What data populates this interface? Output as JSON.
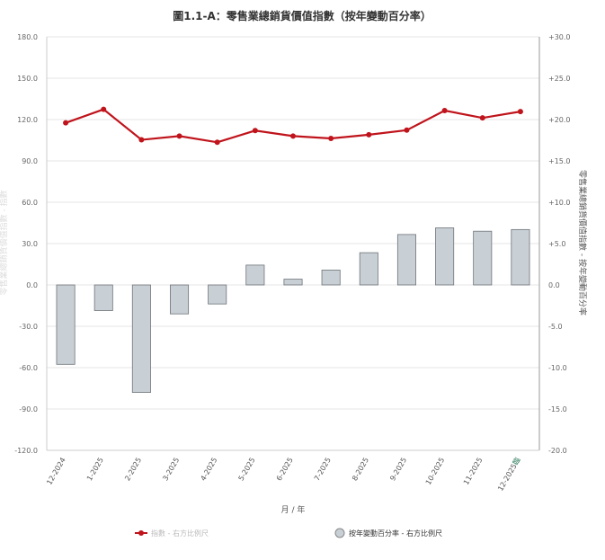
{
  "chart_data": {
    "type": "bar",
    "title": "圖1.1-A：零售業總銷貨價值指數（按年變動百分率）",
    "xlabel": "月 / 年",
    "ylabel_left": "零售業總銷貨價值指數 - 指數",
    "ylabel_right": "零售業總銷貨價值指數 - 按年變動百分率",
    "categories": [
      "12-2024",
      "1-2025",
      "2-2025",
      "3-2025",
      "4-2025",
      "5-2025",
      "6-2025",
      "7-2025",
      "8-2025",
      "9-2025",
      "10-2025",
      "11-2025",
      "12-2025"
    ],
    "last_category_marker": "臨",
    "left_axis": {
      "min": -120,
      "max": 180,
      "ticks": [
        "180.0",
        "150.0",
        "120.0",
        "90.0",
        "60.0",
        "30.0",
        "0.0",
        "-30.0",
        "-60.0",
        "-90.0",
        "-120.0"
      ]
    },
    "right_axis": {
      "min": -20,
      "max": 30,
      "ticks": [
        "+30.0",
        "+25.0",
        "+20.0",
        "+15.0",
        "+10.0",
        "+5.0",
        "0.0",
        "-5.0",
        "-10.0",
        "-15.0",
        "-20.0"
      ]
    },
    "series": [
      {
        "name": "指數 - 右方比例尺",
        "kind": "line",
        "color": "#c0141c",
        "values": [
          117.6,
          127.4,
          105.3,
          108.0,
          103.5,
          112.0,
          108.0,
          106.3,
          109.0,
          112.3,
          126.5,
          121.2,
          125.8
        ]
      },
      {
        "name": "按年變動百分率 - 右方比例尺",
        "kind": "bar",
        "axis": "right",
        "color": "#c8cfd5",
        "values": [
          -9.6,
          -3.1,
          -13.0,
          -3.5,
          -2.3,
          2.4,
          0.7,
          1.8,
          3.9,
          6.1,
          6.9,
          6.5,
          6.7
        ]
      }
    ],
    "grid": true,
    "legend_position": "bottom"
  }
}
